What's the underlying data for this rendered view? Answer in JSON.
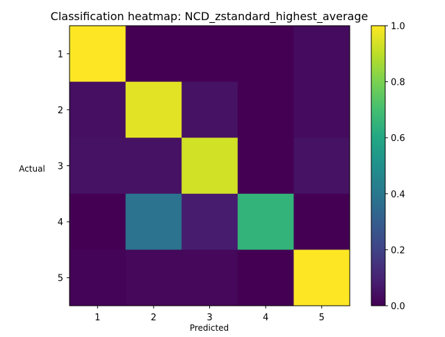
{
  "chart_data": {
    "type": "heatmap",
    "title": "Classification heatmap: NCD_zstandard_highest_average",
    "xlabel": "Predicted",
    "ylabel": "Actual",
    "x_categories": [
      "1",
      "2",
      "3",
      "4",
      "5"
    ],
    "y_categories": [
      "1",
      "2",
      "3",
      "4",
      "5"
    ],
    "values": [
      [
        1.0,
        0.0,
        0.0,
        0.0,
        0.03
      ],
      [
        0.04,
        0.96,
        0.05,
        0.0,
        0.03
      ],
      [
        0.05,
        0.05,
        0.93,
        0.0,
        0.05
      ],
      [
        0.0,
        0.38,
        0.08,
        0.65,
        0.0
      ],
      [
        0.01,
        0.02,
        0.02,
        0.0,
        1.0
      ]
    ],
    "colorbar": {
      "colormap": "viridis",
      "range": [
        0.0,
        1.0
      ],
      "ticks": [
        "0.0",
        "0.2",
        "0.4",
        "0.6",
        "0.8",
        "1.0"
      ]
    }
  }
}
